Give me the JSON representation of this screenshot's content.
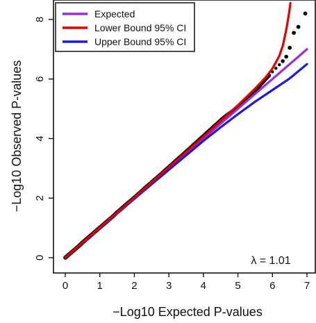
{
  "chart_data": {
    "type": "scatter",
    "title": "",
    "xlabel": "−Log10 Expected P-values",
    "ylabel": "−Log10 Observed P-values",
    "xlim": [
      -0.2,
      7.1
    ],
    "ylim": [
      -0.2,
      8.5
    ],
    "x_ticks": [
      0,
      1,
      2,
      3,
      4,
      5,
      6,
      7
    ],
    "y_ticks": [
      0,
      2,
      4,
      6,
      8
    ],
    "grid": false,
    "legend_position": "top-left",
    "annotation": "λ = 1.01",
    "legend": [
      {
        "label": "Expected",
        "color": "#9b30d9"
      },
      {
        "label": "Lower Bound 95% CI",
        "color": "#e60000"
      },
      {
        "label": "Upper Bound 95% CI",
        "color": "#1a1adb"
      }
    ],
    "series": [
      {
        "role": "observed",
        "color": "#000000",
        "points": [
          [
            0.0,
            0.0
          ],
          [
            0.1,
            0.1
          ],
          [
            0.2,
            0.2
          ],
          [
            0.3,
            0.3
          ],
          [
            0.4,
            0.4
          ],
          [
            0.5,
            0.51
          ],
          [
            0.6,
            0.61
          ],
          [
            0.7,
            0.71
          ],
          [
            0.8,
            0.81
          ],
          [
            0.9,
            0.91
          ],
          [
            1.0,
            1.01
          ],
          [
            1.1,
            1.11
          ],
          [
            1.2,
            1.21
          ],
          [
            1.3,
            1.31
          ],
          [
            1.4,
            1.41
          ],
          [
            1.5,
            1.52
          ],
          [
            1.6,
            1.62
          ],
          [
            1.7,
            1.72
          ],
          [
            1.8,
            1.82
          ],
          [
            1.9,
            1.92
          ],
          [
            2.0,
            2.02
          ],
          [
            2.1,
            2.12
          ],
          [
            2.2,
            2.22
          ],
          [
            2.3,
            2.33
          ],
          [
            2.4,
            2.43
          ],
          [
            2.5,
            2.53
          ],
          [
            2.6,
            2.63
          ],
          [
            2.7,
            2.73
          ],
          [
            2.8,
            2.83
          ],
          [
            2.9,
            2.94
          ],
          [
            3.0,
            3.04
          ],
          [
            3.1,
            3.14
          ],
          [
            3.2,
            3.25
          ],
          [
            3.3,
            3.35
          ],
          [
            3.4,
            3.45
          ],
          [
            3.5,
            3.56
          ],
          [
            3.6,
            3.66
          ],
          [
            3.7,
            3.77
          ],
          [
            3.8,
            3.87
          ],
          [
            3.9,
            3.98
          ],
          [
            4.0,
            4.08
          ],
          [
            4.1,
            4.19
          ],
          [
            4.2,
            4.29
          ],
          [
            4.3,
            4.4
          ],
          [
            4.4,
            4.5
          ],
          [
            4.5,
            4.61
          ],
          [
            4.6,
            4.71
          ],
          [
            4.7,
            4.8
          ],
          [
            4.8,
            4.88
          ],
          [
            4.9,
            4.97
          ],
          [
            5.0,
            5.07
          ],
          [
            5.1,
            5.17
          ],
          [
            5.2,
            5.27
          ],
          [
            5.3,
            5.38
          ],
          [
            5.4,
            5.49
          ],
          [
            5.5,
            5.61
          ],
          [
            5.6,
            5.74
          ],
          [
            5.7,
            5.87
          ],
          [
            5.8,
            6.0
          ],
          [
            5.9,
            6.12
          ],
          [
            6.0,
            6.24
          ],
          [
            6.1,
            6.36
          ],
          [
            6.2,
            6.48
          ],
          [
            6.3,
            6.6
          ],
          [
            6.4,
            6.75
          ],
          [
            6.5,
            7.05
          ],
          [
            6.62,
            7.55
          ],
          [
            6.75,
            7.75
          ],
          [
            6.95,
            8.2
          ]
        ]
      },
      {
        "role": "expected",
        "color": "#9b30d9",
        "points": [
          [
            0,
            0
          ],
          [
            7,
            7
          ]
        ]
      },
      {
        "role": "lower_bound_ci",
        "color": "#e60000",
        "points": [
          [
            0,
            0
          ],
          [
            1,
            1.01
          ],
          [
            2,
            2.02
          ],
          [
            3,
            3.04
          ],
          [
            4,
            4.06
          ],
          [
            4.5,
            4.59
          ],
          [
            5,
            5.12
          ],
          [
            5.5,
            5.68
          ],
          [
            5.8,
            6.05
          ],
          [
            6.0,
            6.35
          ],
          [
            6.2,
            6.78
          ],
          [
            6.3,
            7.12
          ],
          [
            6.4,
            7.65
          ],
          [
            6.48,
            8.2
          ],
          [
            6.52,
            8.55
          ]
        ]
      },
      {
        "role": "upper_bound_ci",
        "color": "#1a1adb",
        "points": [
          [
            0,
            0
          ],
          [
            1,
            0.99
          ],
          [
            2,
            1.98
          ],
          [
            3,
            2.95
          ],
          [
            4,
            3.92
          ],
          [
            4.5,
            4.38
          ],
          [
            5,
            4.82
          ],
          [
            5.5,
            5.24
          ],
          [
            6,
            5.63
          ],
          [
            6.5,
            6.02
          ],
          [
            7,
            6.5
          ]
        ]
      }
    ]
  }
}
